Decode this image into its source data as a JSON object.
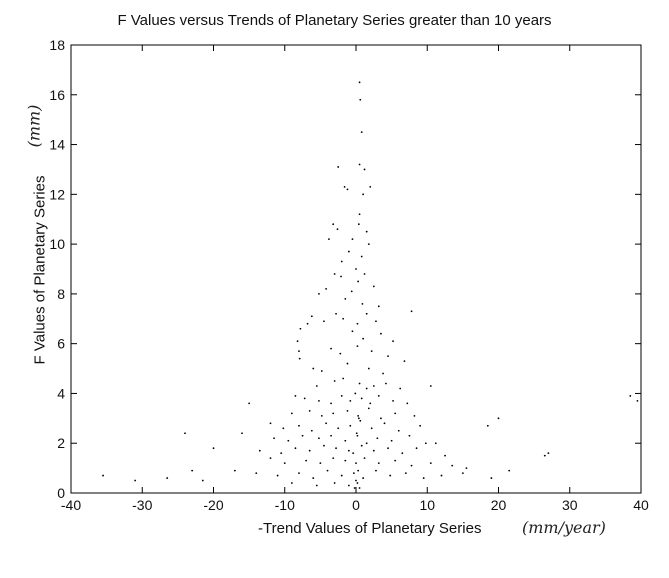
{
  "chart_data": {
    "type": "scatter",
    "title": "F Values versus Trends of Planetary Series greater than 10 years",
    "xlabel": "-Trend Values of Planetary Series",
    "ylabel": "F Values of Planetary Series",
    "x_unit_handwritten": "(mm/year)",
    "y_unit_handwritten": "(mm)",
    "xlim": [
      -40,
      40
    ],
    "ylim": [
      0,
      18
    ],
    "x_ticks": [
      "-40",
      "-30",
      "-20",
      "-10",
      "0",
      "10",
      "20",
      "30",
      "40"
    ],
    "y_ticks": [
      "0",
      "2",
      "4",
      "6",
      "8",
      "10",
      "12",
      "14",
      "16",
      "18"
    ],
    "grid": false,
    "marker_color": "#000000",
    "points": [
      [
        0.5,
        16.5
      ],
      [
        0.6,
        15.8
      ],
      [
        0.8,
        14.5
      ],
      [
        0.5,
        13.2
      ],
      [
        1.2,
        13.0
      ],
      [
        -2.5,
        13.1
      ],
      [
        -1.6,
        12.3
      ],
      [
        -1.2,
        12.2
      ],
      [
        2.0,
        12.3
      ],
      [
        1.0,
        12.0
      ],
      [
        -3.2,
        10.8
      ],
      [
        -2.6,
        10.6
      ],
      [
        -3.8,
        10.2
      ],
      [
        1.5,
        10.5
      ],
      [
        0.4,
        10.8
      ],
      [
        -0.5,
        10.2
      ],
      [
        1.8,
        10.0
      ],
      [
        -2.0,
        9.3
      ],
      [
        0.8,
        9.5
      ],
      [
        -1.0,
        9.7
      ],
      [
        -3.0,
        8.8
      ],
      [
        -2.1,
        8.7
      ],
      [
        -4.2,
        8.2
      ],
      [
        -5.2,
        8.0
      ],
      [
        1.2,
        8.8
      ],
      [
        2.5,
        8.3
      ],
      [
        0.3,
        8.5
      ],
      [
        -1.5,
        7.8
      ],
      [
        3.2,
        7.5
      ],
      [
        7.8,
        7.3
      ],
      [
        -6.2,
        7.1
      ],
      [
        -6.8,
        6.8
      ],
      [
        -7.8,
        6.6
      ],
      [
        -8.2,
        6.1
      ],
      [
        -8.0,
        5.7
      ],
      [
        -7.9,
        5.4
      ],
      [
        -4.5,
        6.9
      ],
      [
        -2.8,
        7.2
      ],
      [
        -1.8,
        7.0
      ],
      [
        1.5,
        7.2
      ],
      [
        2.8,
        6.9
      ],
      [
        -0.5,
        6.5
      ],
      [
        1.0,
        6.2
      ],
      [
        3.5,
        6.4
      ],
      [
        5.2,
        6.1
      ],
      [
        -3.5,
        5.8
      ],
      [
        -2.2,
        5.6
      ],
      [
        2.2,
        5.7
      ],
      [
        0.2,
        5.9
      ],
      [
        4.5,
        5.5
      ],
      [
        -6.0,
        5.0
      ],
      [
        -4.8,
        4.9
      ],
      [
        -1.2,
        5.2
      ],
      [
        1.8,
        5.0
      ],
      [
        3.8,
        4.8
      ],
      [
        6.8,
        5.3
      ],
      [
        -5.5,
        4.3
      ],
      [
        -3.0,
        4.5
      ],
      [
        -1.8,
        4.6
      ],
      [
        0.5,
        4.4
      ],
      [
        1.5,
        4.2
      ],
      [
        2.5,
        4.3
      ],
      [
        4.2,
        4.4
      ],
      [
        6.2,
        4.2
      ],
      [
        10.5,
        4.3
      ],
      [
        -8.5,
        3.9
      ],
      [
        -7.2,
        3.8
      ],
      [
        -5.2,
        3.7
      ],
      [
        -3.5,
        3.6
      ],
      [
        -2.0,
        3.9
      ],
      [
        -0.8,
        3.7
      ],
      [
        0.8,
        3.8
      ],
      [
        2.0,
        3.6
      ],
      [
        3.2,
        3.9
      ],
      [
        5.2,
        3.7
      ],
      [
        7.2,
        3.6
      ],
      [
        -15.0,
        3.6
      ],
      [
        -9.0,
        3.2
      ],
      [
        -6.5,
        3.3
      ],
      [
        -4.8,
        3.1
      ],
      [
        -3.2,
        3.2
      ],
      [
        -1.2,
        3.3
      ],
      [
        0.3,
        3.1
      ],
      [
        1.8,
        3.4
      ],
      [
        3.5,
        3.0
      ],
      [
        5.5,
        3.2
      ],
      [
        8.2,
        3.1
      ],
      [
        20.0,
        3.0
      ],
      [
        -12.0,
        2.8
      ],
      [
        -10.2,
        2.6
      ],
      [
        -8.0,
        2.7
      ],
      [
        -6.2,
        2.5
      ],
      [
        -4.2,
        2.8
      ],
      [
        -2.5,
        2.6
      ],
      [
        -0.8,
        2.7
      ],
      [
        0.6,
        2.9
      ],
      [
        2.2,
        2.6
      ],
      [
        4.0,
        2.8
      ],
      [
        6.0,
        2.5
      ],
      [
        9.0,
        2.7
      ],
      [
        18.5,
        2.7
      ],
      [
        -24.0,
        2.4
      ],
      [
        -16.0,
        2.4
      ],
      [
        -11.5,
        2.2
      ],
      [
        -9.5,
        2.1
      ],
      [
        -7.5,
        2.3
      ],
      [
        -5.2,
        2.2
      ],
      [
        -3.5,
        2.3
      ],
      [
        -1.5,
        2.1
      ],
      [
        0.2,
        2.3
      ],
      [
        1.5,
        2.0
      ],
      [
        3.0,
        2.2
      ],
      [
        5.0,
        2.1
      ],
      [
        7.5,
        2.3
      ],
      [
        9.8,
        2.0
      ],
      [
        11.2,
        2.0
      ],
      [
        -20.0,
        1.8
      ],
      [
        -13.5,
        1.7
      ],
      [
        -10.5,
        1.6
      ],
      [
        -8.5,
        1.8
      ],
      [
        -6.5,
        1.7
      ],
      [
        -4.5,
        1.9
      ],
      [
        -2.8,
        1.8
      ],
      [
        -1.0,
        1.7
      ],
      [
        0.8,
        1.9
      ],
      [
        2.5,
        1.7
      ],
      [
        4.5,
        1.8
      ],
      [
        6.5,
        1.6
      ],
      [
        8.5,
        1.8
      ],
      [
        12.5,
        1.5
      ],
      [
        -12.0,
        1.4
      ],
      [
        -10.0,
        1.2
      ],
      [
        -7.0,
        1.3
      ],
      [
        -5.0,
        1.2
      ],
      [
        -3.2,
        1.4
      ],
      [
        -1.5,
        1.3
      ],
      [
        0.0,
        1.2
      ],
      [
        1.2,
        1.4
      ],
      [
        3.2,
        1.2
      ],
      [
        5.5,
        1.3
      ],
      [
        7.8,
        1.1
      ],
      [
        10.5,
        1.2
      ],
      [
        13.5,
        1.1
      ],
      [
        15.5,
        1.0
      ],
      [
        26.5,
        1.5
      ],
      [
        27.0,
        1.6
      ],
      [
        -17.0,
        0.9
      ],
      [
        -14.0,
        0.8
      ],
      [
        -11.0,
        0.7
      ],
      [
        -8.0,
        0.8
      ],
      [
        -6.0,
        0.6
      ],
      [
        -4.0,
        0.9
      ],
      [
        -2.0,
        0.7
      ],
      [
        -0.3,
        0.8
      ],
      [
        1.0,
        0.6
      ],
      [
        2.8,
        0.9
      ],
      [
        4.8,
        0.7
      ],
      [
        7.0,
        0.8
      ],
      [
        9.5,
        0.6
      ],
      [
        12.0,
        0.7
      ],
      [
        15.0,
        0.8
      ],
      [
        19.0,
        0.6
      ],
      [
        21.5,
        0.9
      ],
      [
        -35.5,
        0.7
      ],
      [
        -31.0,
        0.5
      ],
      [
        -26.5,
        0.6
      ],
      [
        -23.0,
        0.9
      ],
      [
        -21.5,
        0.5
      ],
      [
        -9.0,
        0.4
      ],
      [
        -5.5,
        0.3
      ],
      [
        -3.0,
        0.4
      ],
      [
        -1.0,
        0.3
      ],
      [
        0.2,
        0.4
      ],
      [
        0.5,
        0.2
      ],
      [
        -0.2,
        0.2
      ],
      [
        0.0,
        0.5
      ],
      [
        0.3,
        0.9
      ],
      [
        -0.4,
        1.6
      ],
      [
        0.1,
        2.4
      ],
      [
        0.4,
        3.0
      ],
      [
        38.5,
        3.9
      ],
      [
        39.5,
        3.7
      ],
      [
        -0.1,
        4.0
      ],
      [
        0.2,
        6.8
      ],
      [
        0.9,
        7.6
      ],
      [
        -0.6,
        8.1
      ],
      [
        0.0,
        9.0
      ],
      [
        0.5,
        11.2
      ]
    ]
  }
}
